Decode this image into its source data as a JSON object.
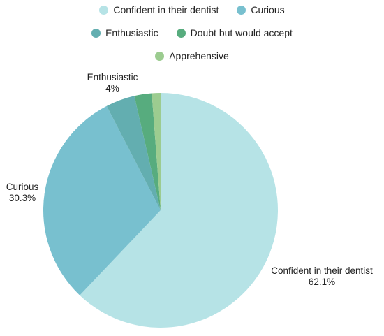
{
  "chart_data": {
    "type": "pie",
    "legend_position": "top",
    "categories": [
      "Confident in their dentist",
      "Curious",
      "Enthusiastic",
      "Doubt but would accept",
      "Apprehensive"
    ],
    "values": [
      62.1,
      30.3,
      4,
      2.4,
      1.2
    ],
    "colors": [
      "#b6e3e6",
      "#78c0cf",
      "#63aeb0",
      "#57ac7e",
      "#9ccc90"
    ],
    "data_labels": [
      {
        "name": "Confident in their dentist",
        "value": "62.1%"
      },
      {
        "name": "Curious",
        "value": "30.3%"
      },
      {
        "name": "Enthusiastic",
        "value": "4%"
      }
    ]
  }
}
